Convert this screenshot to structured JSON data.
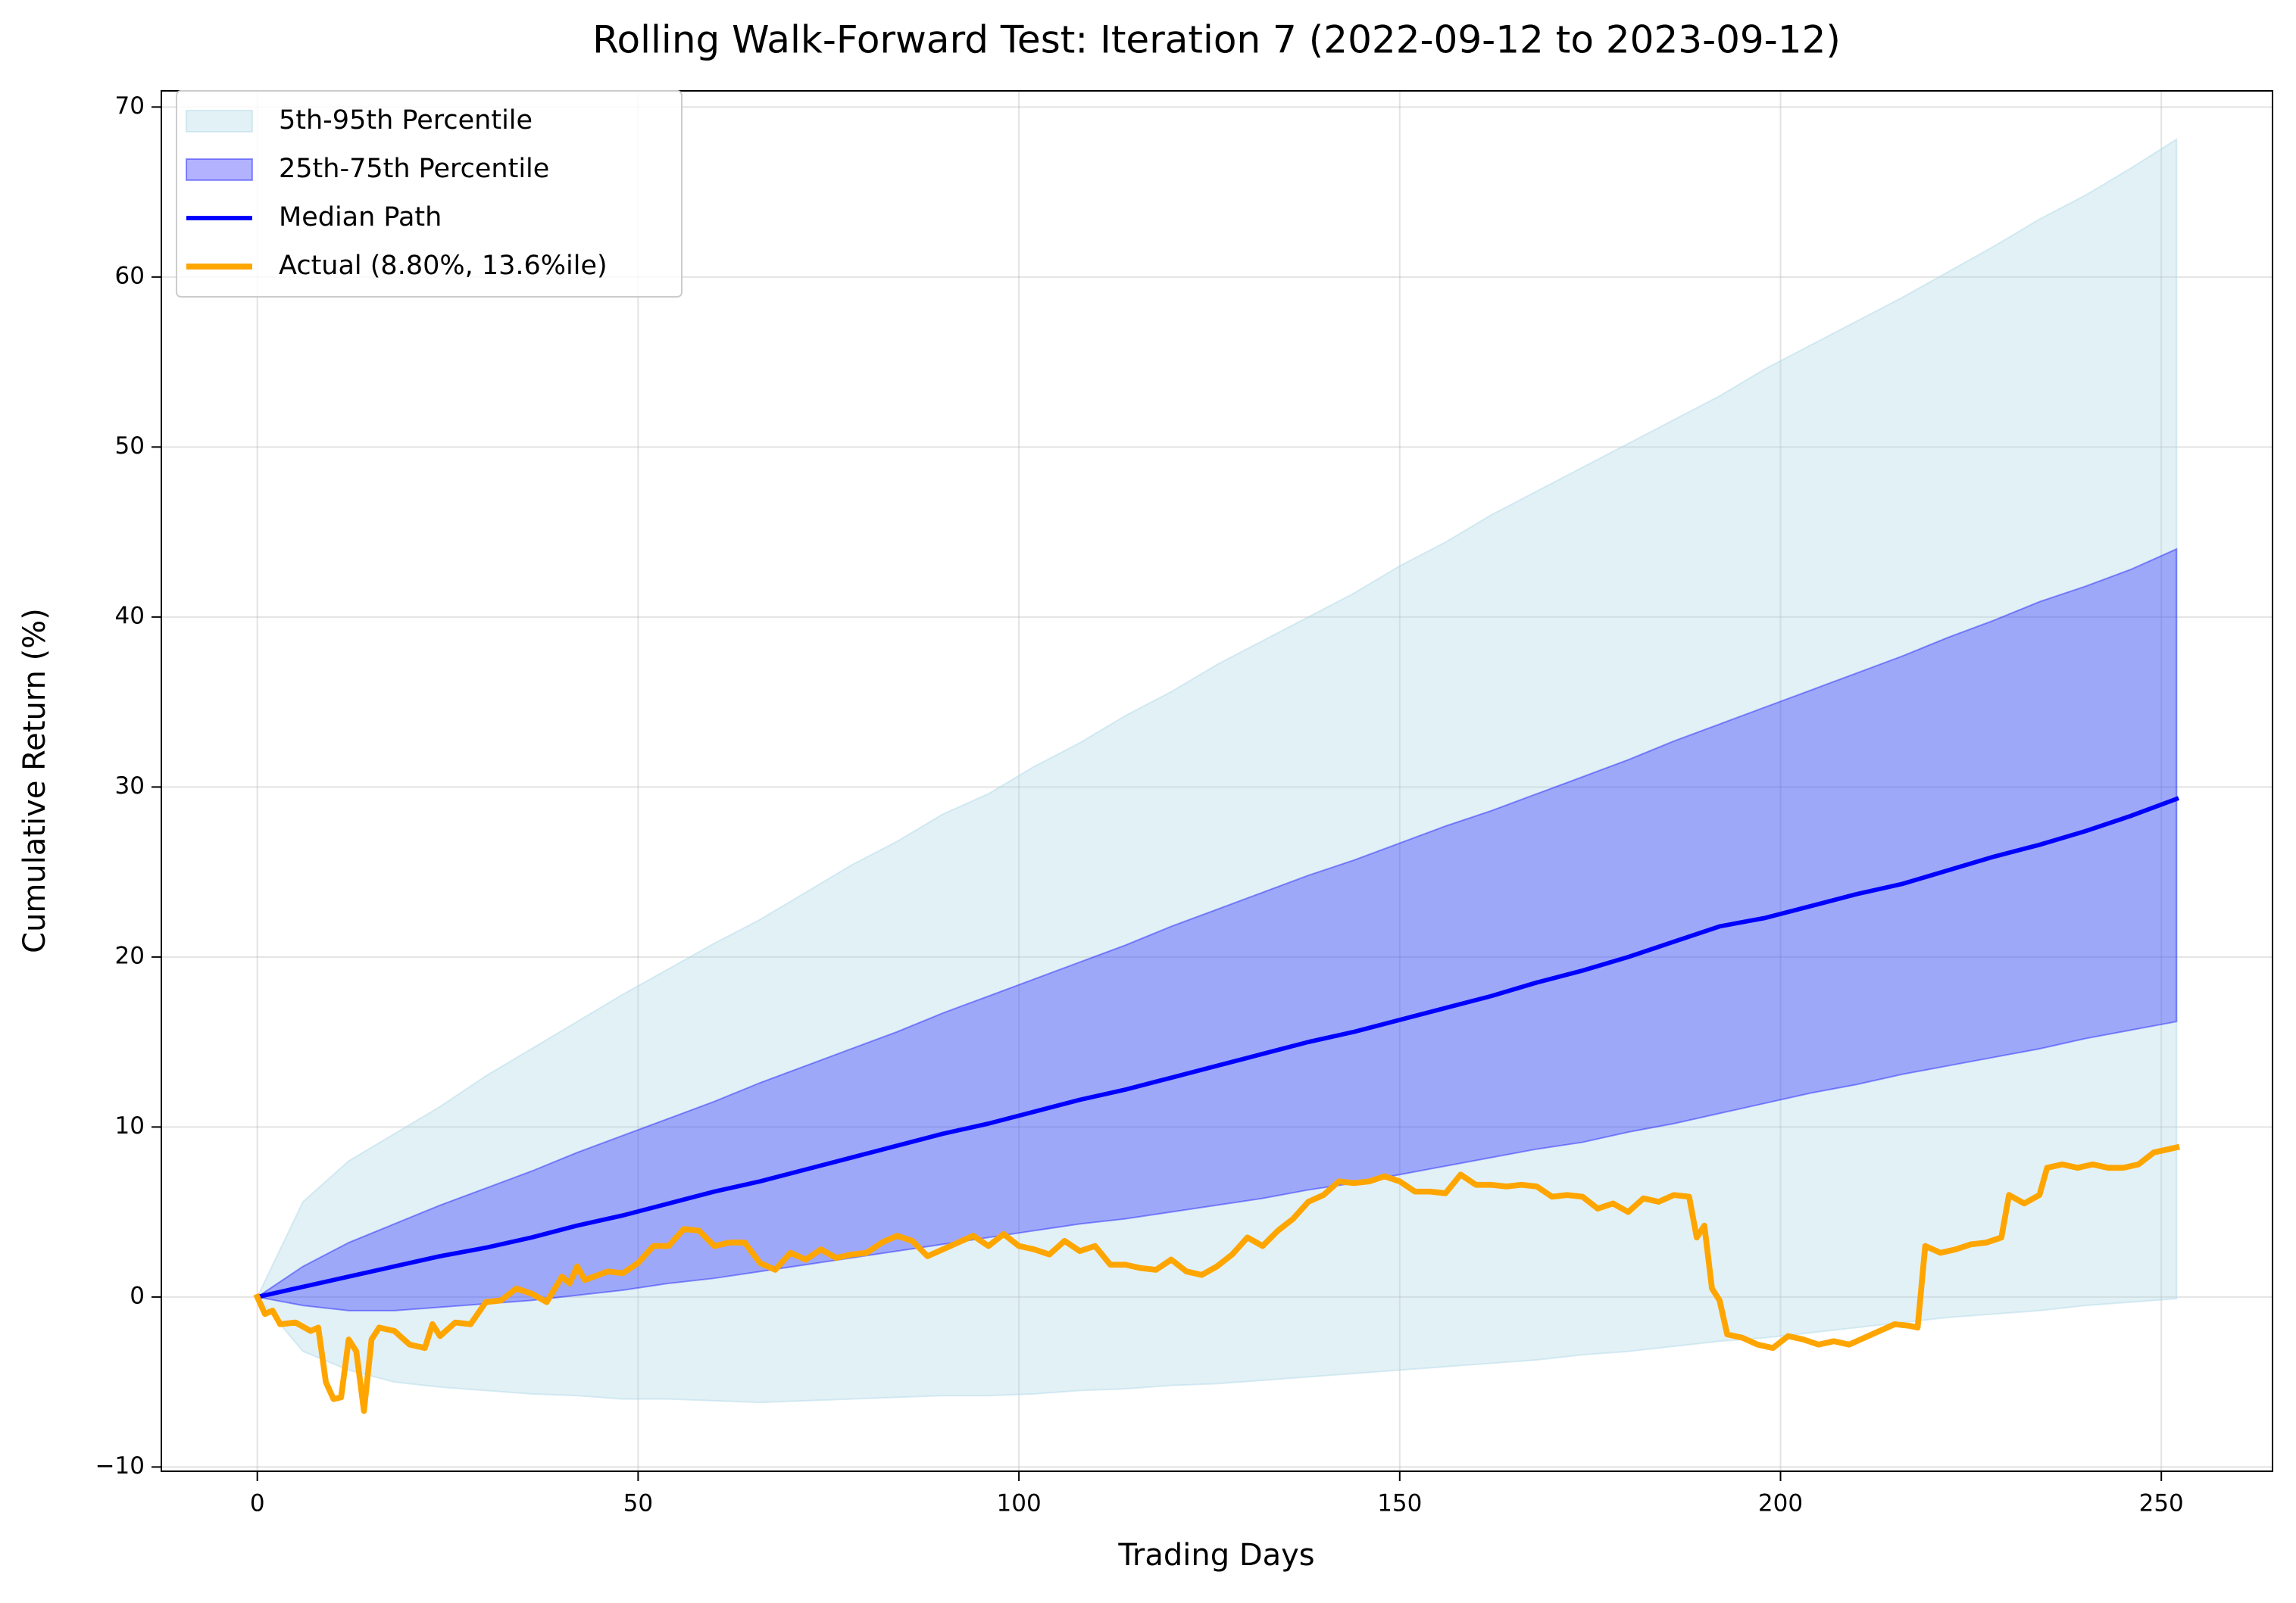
{
  "chart_data": {
    "type": "line",
    "title": "Rolling Walk-Forward Test: Iteration 7 (2022-09-12 to 2023-09-12)",
    "x_label": "Trading Days",
    "y_label": "Cumulative Return (%)",
    "xlim": [
      -12.6,
      264.6
    ],
    "ylim": [
      -10.25,
      70.95
    ],
    "xticks": [
      0,
      50,
      100,
      150,
      200,
      250
    ],
    "yticks": [
      {
        "value": -10,
        "label": "−10"
      },
      0,
      10,
      20,
      30,
      40,
      50,
      60,
      70
    ],
    "grid": true,
    "legend": "upper left",
    "x": [
      0,
      6,
      12,
      18,
      24,
      30,
      36,
      42,
      48,
      54,
      60,
      66,
      72,
      78,
      84,
      90,
      96,
      102,
      108,
      114,
      120,
      126,
      132,
      138,
      144,
      150,
      156,
      162,
      168,
      174,
      180,
      186,
      192,
      198,
      204,
      210,
      216,
      222,
      228,
      234,
      240,
      246,
      252
    ],
    "series": [
      {
        "name": "5th-95th Percentile",
        "kind": "band",
        "color": "#add8e6",
        "alpha": 0.35,
        "lower": [
          0,
          -3.2,
          -4.3,
          -5.0,
          -5.3,
          -5.5,
          -5.7,
          -5.8,
          -6.0,
          -6.0,
          -6.1,
          -6.2,
          -6.1,
          -6.0,
          -5.9,
          -5.8,
          -5.8,
          -5.7,
          -5.5,
          -5.4,
          -5.2,
          -5.1,
          -4.9,
          -4.7,
          -4.5,
          -4.3,
          -4.1,
          -3.9,
          -3.7,
          -3.4,
          -3.2,
          -2.9,
          -2.6,
          -2.4,
          -2.1,
          -1.8,
          -1.5,
          -1.2,
          -1.0,
          -0.8,
          -0.5,
          -0.3,
          -0.1
        ],
        "upper": [
          0,
          5.6,
          8.0,
          9.6,
          11.2,
          13.0,
          14.6,
          16.2,
          17.8,
          19.3,
          20.8,
          22.2,
          23.8,
          25.4,
          26.8,
          28.4,
          29.6,
          31.2,
          32.6,
          34.2,
          35.6,
          37.2,
          38.6,
          40.0,
          41.4,
          43.0,
          44.4,
          46.0,
          47.4,
          48.8,
          50.2,
          51.6,
          53.0,
          54.6,
          56.0,
          57.4,
          58.8,
          60.3,
          61.8,
          63.4,
          64.8,
          66.4,
          68.1
        ]
      },
      {
        "name": "25th-75th Percentile",
        "kind": "band",
        "color": "#0000ff",
        "alpha": 0.3,
        "lower": [
          0,
          -0.5,
          -0.8,
          -0.8,
          -0.6,
          -0.4,
          -0.2,
          0.1,
          0.4,
          0.8,
          1.1,
          1.5,
          1.9,
          2.3,
          2.7,
          3.1,
          3.5,
          3.9,
          4.3,
          4.6,
          5.0,
          5.4,
          5.8,
          6.3,
          6.7,
          7.2,
          7.7,
          8.2,
          8.7,
          9.1,
          9.7,
          10.2,
          10.8,
          11.4,
          12.0,
          12.5,
          13.1,
          13.6,
          14.1,
          14.6,
          15.2,
          15.7,
          16.2
        ],
        "upper": [
          0,
          1.8,
          3.2,
          4.3,
          5.4,
          6.4,
          7.4,
          8.5,
          9.5,
          10.5,
          11.5,
          12.6,
          13.6,
          14.6,
          15.6,
          16.7,
          17.7,
          18.7,
          19.7,
          20.7,
          21.8,
          22.8,
          23.8,
          24.8,
          25.7,
          26.7,
          27.7,
          28.6,
          29.6,
          30.6,
          31.6,
          32.7,
          33.7,
          34.7,
          35.7,
          36.7,
          37.7,
          38.8,
          39.8,
          40.9,
          41.8,
          42.8,
          44.0
        ]
      },
      {
        "name": "Median Path",
        "kind": "line",
        "color": "#0000ff",
        "width": 3,
        "values": [
          0,
          0.6,
          1.2,
          1.8,
          2.4,
          2.9,
          3.5,
          4.2,
          4.8,
          5.5,
          6.2,
          6.8,
          7.5,
          8.2,
          8.9,
          9.6,
          10.2,
          10.9,
          11.6,
          12.2,
          12.9,
          13.6,
          14.3,
          15.0,
          15.6,
          16.3,
          17.0,
          17.7,
          18.5,
          19.2,
          20.0,
          20.9,
          21.8,
          22.3,
          23.0,
          23.7,
          24.3,
          25.1,
          25.9,
          26.6,
          27.4,
          28.3,
          29.3
        ]
      },
      {
        "name": "Actual (8.80%, 13.6%ile)",
        "kind": "line",
        "color": "#ffa500",
        "width": 4,
        "x": [
          0,
          1,
          2,
          3,
          5,
          7,
          8,
          9,
          10,
          11,
          12,
          13,
          14,
          15,
          16,
          18,
          20,
          22,
          23,
          24,
          26,
          28,
          30,
          32,
          34,
          36,
          38,
          40,
          41,
          42,
          43,
          46,
          48,
          50,
          52,
          54,
          56,
          58,
          60,
          62,
          64,
          66,
          68,
          70,
          72,
          74,
          76,
          78,
          80,
          82,
          84,
          86,
          88,
          90,
          92,
          94,
          96,
          98,
          100,
          102,
          104,
          106,
          108,
          110,
          112,
          114,
          116,
          118,
          120,
          122,
          124,
          126,
          128,
          130,
          132,
          134,
          136,
          138,
          140,
          142,
          144,
          146,
          148,
          150,
          152,
          154,
          156,
          158,
          160,
          162,
          164,
          166,
          168,
          170,
          172,
          174,
          176,
          178,
          180,
          182,
          184,
          186,
          188,
          189,
          190,
          191,
          192,
          193,
          195,
          197,
          199,
          201,
          203,
          205,
          207,
          209,
          211,
          213,
          215,
          217,
          218,
          219,
          221,
          223,
          225,
          227,
          229,
          230,
          232,
          234,
          235,
          237,
          239,
          241,
          243,
          245,
          247,
          249,
          252
        ],
        "values": [
          0,
          -1.0,
          -0.8,
          -1.6,
          -1.5,
          -2.0,
          -1.8,
          -5.0,
          -6.0,
          -5.9,
          -2.5,
          -3.2,
          -6.7,
          -2.5,
          -1.8,
          -2.0,
          -2.8,
          -3.0,
          -1.6,
          -2.3,
          -1.5,
          -1.6,
          -0.3,
          -0.2,
          0.5,
          0.2,
          -0.3,
          1.2,
          0.8,
          1.8,
          1.0,
          1.5,
          1.4,
          2.0,
          3.0,
          3.0,
          4.0,
          3.9,
          3.0,
          3.2,
          3.2,
          2.0,
          1.6,
          2.6,
          2.2,
          2.8,
          2.3,
          2.5,
          2.6,
          3.2,
          3.6,
          3.3,
          2.4,
          2.8,
          3.2,
          3.6,
          3.0,
          3.7,
          3.0,
          2.8,
          2.5,
          3.3,
          2.7,
          3.0,
          1.9,
          1.9,
          1.7,
          1.6,
          2.2,
          1.5,
          1.3,
          1.8,
          2.5,
          3.5,
          3.0,
          3.9,
          4.6,
          5.6,
          6.0,
          6.8,
          6.7,
          6.8,
          7.1,
          6.8,
          6.2,
          6.2,
          6.1,
          7.2,
          6.6,
          6.6,
          6.5,
          6.6,
          6.5,
          5.9,
          6.0,
          5.9,
          5.2,
          5.5,
          5.0,
          5.8,
          5.6,
          6.0,
          5.9,
          3.5,
          4.2,
          0.5,
          -0.2,
          -2.2,
          -2.4,
          -2.8,
          -3.0,
          -2.3,
          -2.5,
          -2.8,
          -2.6,
          -2.8,
          -2.4,
          -2.0,
          -1.6,
          -1.7,
          -1.8,
          3.0,
          2.6,
          2.8,
          3.1,
          3.2,
          3.5,
          6.0,
          5.5,
          6.0,
          7.6,
          7.8,
          7.6,
          7.8,
          7.6,
          7.6,
          7.8,
          8.5,
          8.8
        ]
      }
    ]
  }
}
